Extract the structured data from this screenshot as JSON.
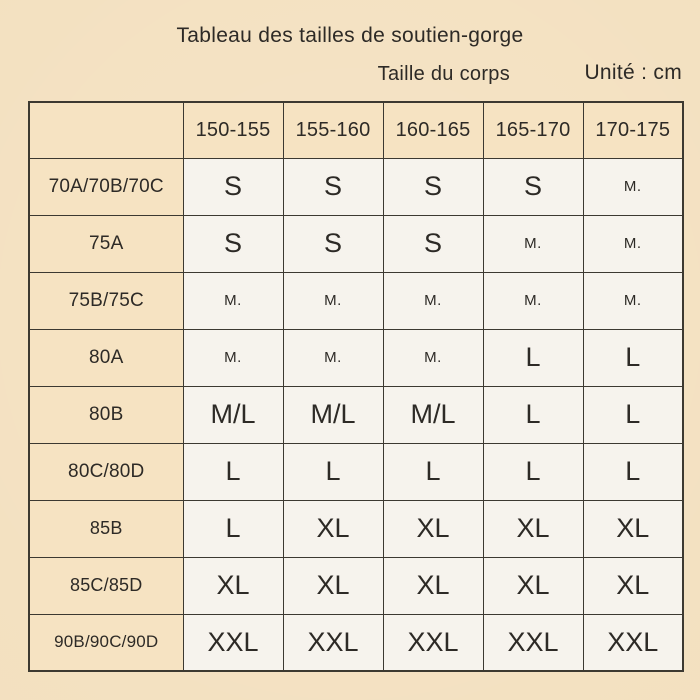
{
  "page": {
    "title": "Tableau des tailles de soutien-gorge",
    "header_note": "Taille du corps",
    "unit_note": "Unité : cm"
  },
  "chart_data": {
    "type": "table",
    "title": "Tableau des tailles de soutien-gorge",
    "header_note": "Taille du corps",
    "unit_note": "Unité : cm",
    "corner_label": "",
    "column_headers": [
      "150-155",
      "155-160",
      "160-165",
      "165-170",
      "170-175"
    ],
    "rows": [
      {
        "label": "70A/70B/70C",
        "values": [
          "S",
          "S",
          "S",
          "S",
          "M."
        ]
      },
      {
        "label": "75A",
        "values": [
          "S",
          "S",
          "S",
          "M.",
          "M."
        ]
      },
      {
        "label": "75B/75C",
        "values": [
          "M.",
          "M.",
          "M.",
          "M.",
          "M."
        ]
      },
      {
        "label": "80A",
        "values": [
          "M.",
          "M.",
          "M.",
          "L",
          "L"
        ]
      },
      {
        "label": "80B",
        "values": [
          "M/L",
          "M/L",
          "M/L",
          "L",
          "L"
        ]
      },
      {
        "label": "80C/80D",
        "values": [
          "L",
          "L",
          "L",
          "L",
          "L"
        ]
      },
      {
        "label": "85B",
        "values": [
          "L",
          "XL",
          "XL",
          "XL",
          "XL"
        ]
      },
      {
        "label": "85C/85D",
        "values": [
          "XL",
          "XL",
          "XL",
          "XL",
          "XL"
        ]
      },
      {
        "label": "90B/90C/90D",
        "values": [
          "XXL",
          "XXL",
          "XXL",
          "XXL",
          "XXL"
        ]
      }
    ],
    "layout": {
      "grid": "on",
      "row_header_column": true,
      "small_value_marker": "M."
    }
  },
  "colors": {
    "background": "#f3e0bf",
    "cell_background": "#f6f3ed",
    "header_background": "#f6e3c2",
    "border": "#3c3931",
    "text": "#2d2a26"
  }
}
